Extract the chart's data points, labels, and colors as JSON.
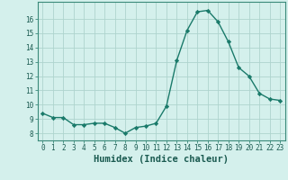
{
  "x": [
    0,
    1,
    2,
    3,
    4,
    5,
    6,
    7,
    8,
    9,
    10,
    11,
    12,
    13,
    14,
    15,
    16,
    17,
    18,
    19,
    20,
    21,
    22,
    23
  ],
  "y": [
    9.4,
    9.1,
    9.1,
    8.6,
    8.6,
    8.7,
    8.7,
    8.4,
    8.0,
    8.4,
    8.5,
    8.7,
    9.9,
    13.1,
    15.2,
    16.5,
    16.6,
    15.8,
    14.4,
    12.6,
    12.0,
    10.8,
    10.4,
    10.3
  ],
  "line_color": "#1a7a6a",
  "marker": "D",
  "marker_size": 2.2,
  "bg_color": "#d4f0ec",
  "grid_color": "#aed4ce",
  "xlabel": "Humidex (Indice chaleur)",
  "xlim": [
    -0.5,
    23.5
  ],
  "ylim": [
    7.5,
    17.2
  ],
  "yticks": [
    8,
    9,
    10,
    11,
    12,
    13,
    14,
    15,
    16
  ],
  "xticks": [
    0,
    1,
    2,
    3,
    4,
    5,
    6,
    7,
    8,
    9,
    10,
    11,
    12,
    13,
    14,
    15,
    16,
    17,
    18,
    19,
    20,
    21,
    22,
    23
  ],
  "tick_fontsize": 5.5,
  "xlabel_fontsize": 7.5,
  "linewidth": 1.0
}
